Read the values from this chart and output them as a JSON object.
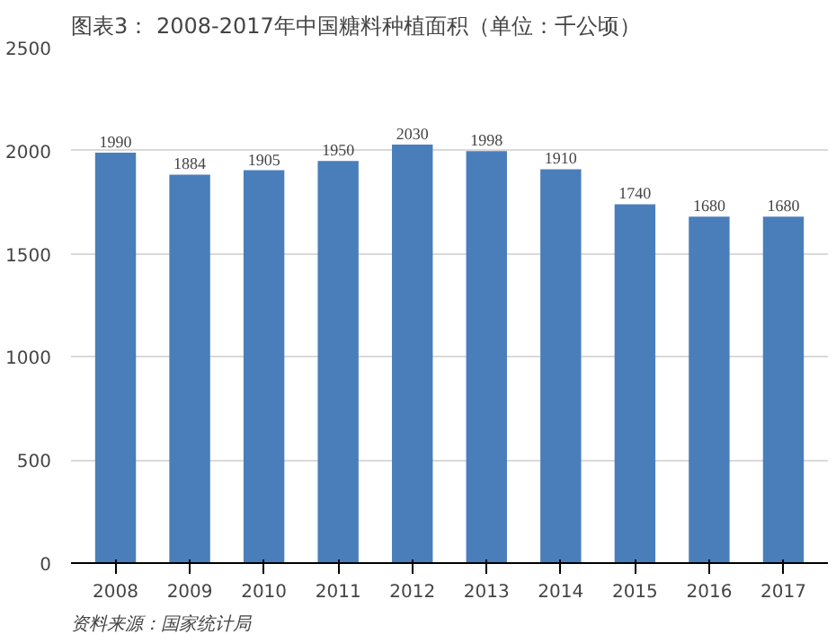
{
  "chart_data": {
    "type": "bar",
    "title": "图表3： 2008-2017年中国糖料种植面积（单位：千公顷）",
    "categories": [
      "2008",
      "2009",
      "2010",
      "2011",
      "2012",
      "2013",
      "2014",
      "2015",
      "2016",
      "2017"
    ],
    "values": [
      1990,
      1884,
      1905,
      1950,
      2030,
      1998,
      1910,
      1740,
      1680,
      1680
    ],
    "color": "#4a7ebb",
    "ylim": [
      0,
      2500
    ],
    "yticks": [
      0,
      500,
      1000,
      1500,
      2000,
      2500
    ],
    "grid": "y",
    "data_labels": true,
    "annotations": [
      "资料来源：国家统计局"
    ]
  }
}
